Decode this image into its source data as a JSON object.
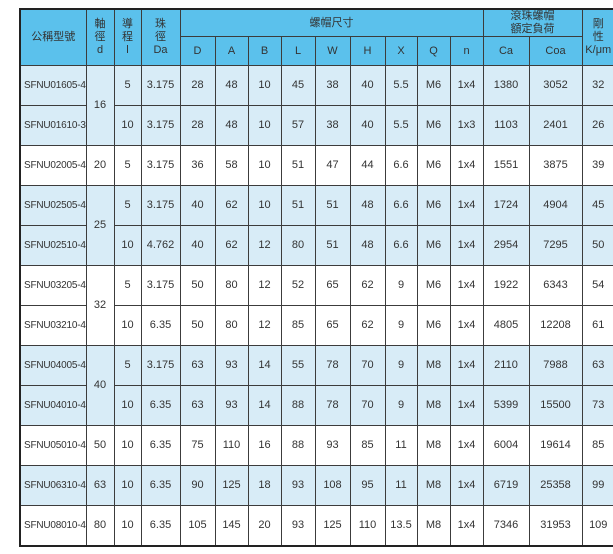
{
  "colors": {
    "header_bg": "#5BC1EC",
    "row_shaded_bg": "#D8ECF7",
    "row_plain_bg": "#FFFFFF",
    "border": "#3C3C3C",
    "text": "#333333"
  },
  "table": {
    "header": {
      "model": "公稱型號",
      "shaft_dia": "軸\n徑\nd",
      "lead": "導\n程\nl",
      "ball_dia": "珠\n徑\nDa",
      "nut_dims_group": "螺帽尺寸",
      "nut_dim_cols": [
        "D",
        "A",
        "B",
        "L",
        "W",
        "H",
        "X",
        "Q",
        "n"
      ],
      "load_group": "滾珠螺帽\n額定負荷",
      "load_cols": [
        "Ca",
        "Coa"
      ],
      "rigidity": "剛\n性\nK/μm"
    },
    "rows": [
      {
        "model": "SFNU01605-4",
        "d": "16",
        "d_rowspan": 2,
        "lead": "5",
        "ball_dia": "3.175",
        "dims": [
          "28",
          "48",
          "10",
          "45",
          "38",
          "40",
          "5.5",
          "M6",
          "1x4"
        ],
        "ca": "1380",
        "coa": "3052",
        "k": "32",
        "shaded": true
      },
      {
        "model": "SFNU01610-3",
        "d": null,
        "lead": "10",
        "ball_dia": "3.175",
        "dims": [
          "28",
          "48",
          "10",
          "57",
          "38",
          "40",
          "5.5",
          "M6",
          "1x3"
        ],
        "ca": "1103",
        "coa": "2401",
        "k": "26",
        "shaded": true
      },
      {
        "model": "SFNU02005-4",
        "d": "20",
        "d_rowspan": 1,
        "lead": "5",
        "ball_dia": "3.175",
        "dims": [
          "36",
          "58",
          "10",
          "51",
          "47",
          "44",
          "6.6",
          "M6",
          "1x4"
        ],
        "ca": "1551",
        "coa": "3875",
        "k": "39",
        "shaded": false
      },
      {
        "model": "SFNU02505-4",
        "d": "25",
        "d_rowspan": 2,
        "lead": "5",
        "ball_dia": "3.175",
        "dims": [
          "40",
          "62",
          "10",
          "51",
          "51",
          "48",
          "6.6",
          "M6",
          "1x4"
        ],
        "ca": "1724",
        "coa": "4904",
        "k": "45",
        "shaded": true
      },
      {
        "model": "SFNU02510-4",
        "d": null,
        "lead": "10",
        "ball_dia": "4.762",
        "dims": [
          "40",
          "62",
          "12",
          "80",
          "51",
          "48",
          "6.6",
          "M6",
          "1x4"
        ],
        "ca": "2954",
        "coa": "7295",
        "k": "50",
        "shaded": true
      },
      {
        "model": "SFNU03205-4",
        "d": "32",
        "d_rowspan": 2,
        "lead": "5",
        "ball_dia": "3.175",
        "dims": [
          "50",
          "80",
          "12",
          "52",
          "65",
          "62",
          "9",
          "M6",
          "1x4"
        ],
        "ca": "1922",
        "coa": "6343",
        "k": "54",
        "shaded": false
      },
      {
        "model": "SFNU03210-4",
        "d": null,
        "lead": "10",
        "ball_dia": "6.35",
        "dims": [
          "50",
          "80",
          "12",
          "85",
          "65",
          "62",
          "9",
          "M6",
          "1x4"
        ],
        "ca": "4805",
        "coa": "12208",
        "k": "61",
        "shaded": false
      },
      {
        "model": "SFNU04005-4",
        "d": "40",
        "d_rowspan": 2,
        "lead": "5",
        "ball_dia": "3.175",
        "dims": [
          "63",
          "93",
          "14",
          "55",
          "78",
          "70",
          "9",
          "M8",
          "1x4"
        ],
        "ca": "2110",
        "coa": "7988",
        "k": "63",
        "shaded": true
      },
      {
        "model": "SFNU04010-4",
        "d": null,
        "lead": "10",
        "ball_dia": "6.35",
        "dims": [
          "63",
          "93",
          "14",
          "88",
          "78",
          "70",
          "9",
          "M8",
          "1x4"
        ],
        "ca": "5399",
        "coa": "15500",
        "k": "73",
        "shaded": true
      },
      {
        "model": "SFNU05010-4",
        "d": "50",
        "d_rowspan": 1,
        "lead": "10",
        "ball_dia": "6.35",
        "dims": [
          "75",
          "110",
          "16",
          "88",
          "93",
          "85",
          "11",
          "M8",
          "1x4"
        ],
        "ca": "6004",
        "coa": "19614",
        "k": "85",
        "shaded": false
      },
      {
        "model": "SFNU06310-4",
        "d": "63",
        "d_rowspan": 1,
        "lead": "10",
        "ball_dia": "6.35",
        "dims": [
          "90",
          "125",
          "18",
          "93",
          "108",
          "95",
          "11",
          "M8",
          "1x4"
        ],
        "ca": "6719",
        "coa": "25358",
        "k": "99",
        "shaded": true
      },
      {
        "model": "SFNU08010-4",
        "d": "80",
        "d_rowspan": 1,
        "lead": "10",
        "ball_dia": "6.35",
        "dims": [
          "105",
          "145",
          "20",
          "93",
          "125",
          "110",
          "13.5",
          "M8",
          "1x4"
        ],
        "ca": "7346",
        "coa": "31953",
        "k": "109",
        "shaded": false
      }
    ]
  }
}
